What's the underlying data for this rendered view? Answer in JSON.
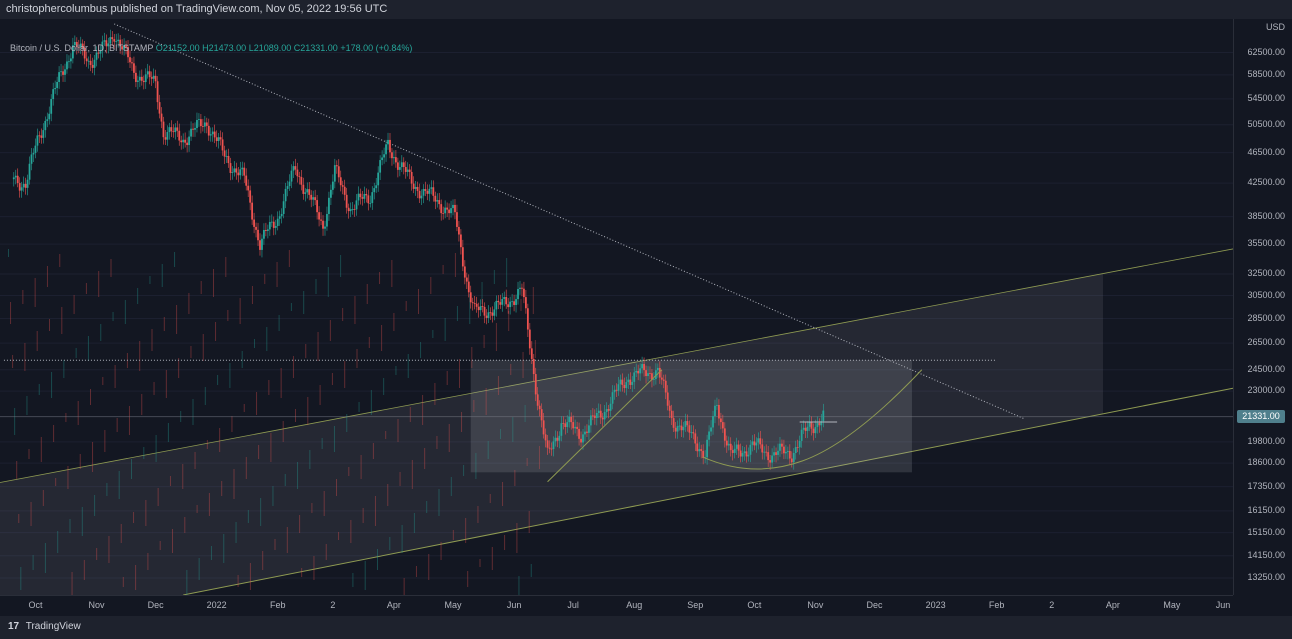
{
  "header": {
    "publisher_text": "christophercolumbus published on TradingView.com, Nov 05, 2022 19:56 UTC"
  },
  "legend": {
    "symbol": "Bitcoin / U.S. Dollar, 1D, BITSTAMP",
    "open": "O21152.00",
    "high": "H21473.00",
    "low": "L21089.00",
    "close": "C21331.00",
    "change": "+178.00 (+0.84%)"
  },
  "footer": {
    "logo_mark": "17",
    "logo_text": "TradingView"
  },
  "colors": {
    "background": "#131722",
    "up": "#26a69a",
    "down": "#ef5350",
    "trend_green": "#8f9b52",
    "white_dotted": "#b2b5be",
    "price_tag": "#4f7f8c"
  },
  "chart_data": {
    "type": "candlestick",
    "currency": "USD",
    "y_scale": "log",
    "ylim": [
      12600,
      69000
    ],
    "y_ticks": [
      "62500.00",
      "58500.00",
      "54500.00",
      "50500.00",
      "46500.00",
      "42500.00",
      "38500.00",
      "35500.00",
      "32500.00",
      "30500.00",
      "28500.00",
      "26500.00",
      "24500.00",
      "23000.00",
      "19800.00",
      "18600.00",
      "17350.00",
      "16150.00",
      "15150.00",
      "14150.00",
      "13250.00"
    ],
    "x_ticks": [
      "Oct",
      "Nov",
      "Dec",
      "2022",
      "Feb",
      "2",
      "Apr",
      "May",
      "Jun",
      "Jul",
      "Aug",
      "Sep",
      "Oct",
      "Nov",
      "Dec",
      "2023",
      "Feb",
      "2",
      "Apr",
      "May",
      "Jun"
    ],
    "current_price_label": "21331.00",
    "current_price": 21331,
    "close_series": [
      {
        "x": "2021-09-20",
        "y": 43000
      },
      {
        "x": "2021-09-26",
        "y": 42500
      },
      {
        "x": "2021-10-02",
        "y": 48000
      },
      {
        "x": "2021-10-10",
        "y": 55000
      },
      {
        "x": "2021-10-20",
        "y": 64000
      },
      {
        "x": "2021-10-28",
        "y": 61000
      },
      {
        "x": "2021-11-06",
        "y": 63500
      },
      {
        "x": "2021-11-10",
        "y": 66500
      },
      {
        "x": "2021-11-20",
        "y": 59000
      },
      {
        "x": "2021-12-01",
        "y": 57000
      },
      {
        "x": "2021-12-05",
        "y": 49500
      },
      {
        "x": "2021-12-15",
        "y": 48500
      },
      {
        "x": "2021-12-27",
        "y": 51000
      },
      {
        "x": "2022-01-05",
        "y": 46000
      },
      {
        "x": "2022-01-15",
        "y": 43000
      },
      {
        "x": "2022-01-23",
        "y": 35500
      },
      {
        "x": "2022-02-01",
        "y": 38500
      },
      {
        "x": "2022-02-10",
        "y": 44500
      },
      {
        "x": "2022-02-24",
        "y": 37500
      },
      {
        "x": "2022-03-02",
        "y": 44000
      },
      {
        "x": "2022-03-10",
        "y": 39500
      },
      {
        "x": "2022-03-20",
        "y": 41000
      },
      {
        "x": "2022-03-29",
        "y": 47500
      },
      {
        "x": "2022-04-10",
        "y": 42500
      },
      {
        "x": "2022-04-25",
        "y": 40000
      },
      {
        "x": "2022-05-02",
        "y": 38500
      },
      {
        "x": "2022-05-09",
        "y": 31000
      },
      {
        "x": "2022-05-12",
        "y": 29000
      },
      {
        "x": "2022-05-25",
        "y": 29500
      },
      {
        "x": "2022-06-05",
        "y": 31000
      },
      {
        "x": "2022-06-13",
        "y": 22500
      },
      {
        "x": "2022-06-18",
        "y": 18900
      },
      {
        "x": "2022-06-25",
        "y": 21000
      },
      {
        "x": "2022-07-05",
        "y": 20300
      },
      {
        "x": "2022-07-15",
        "y": 21500
      },
      {
        "x": "2022-07-29",
        "y": 24000
      },
      {
        "x": "2022-08-13",
        "y": 24500
      },
      {
        "x": "2022-08-20",
        "y": 21200
      },
      {
        "x": "2022-09-01",
        "y": 20000
      },
      {
        "x": "2022-09-06",
        "y": 19000
      },
      {
        "x": "2022-09-12",
        "y": 22200
      },
      {
        "x": "2022-09-19",
        "y": 19000
      },
      {
        "x": "2022-09-30",
        "y": 19600
      },
      {
        "x": "2022-10-10",
        "y": 19100
      },
      {
        "x": "2022-10-20",
        "y": 19200
      },
      {
        "x": "2022-10-29",
        "y": 20700
      },
      {
        "x": "2022-11-05",
        "y": 21331
      }
    ],
    "volume_profile_note": "faint red/green bars across plot",
    "drawings": [
      {
        "kind": "dotted_descending_trendline",
        "from": {
          "x": "2021-11-10",
          "y": 68000
        },
        "to": {
          "x": "2023-02-15",
          "y": 21200
        }
      },
      {
        "kind": "dotted_horizontal",
        "y": 25200,
        "from": "2021-09-15",
        "to": "2023-02-01"
      },
      {
        "kind": "ascending_channel_upper",
        "from": {
          "x": "2021-09-15",
          "y": 17600
        },
        "to": {
          "x": "2023-06-01",
          "y": 35000
        }
      },
      {
        "kind": "ascending_channel_lower",
        "from": {
          "x": "2021-12-15",
          "y": 12600
        },
        "to": {
          "x": "2023-06-01",
          "y": 23200
        }
      },
      {
        "kind": "rectangle_range",
        "x0": "2022-05-10",
        "x1": "2022-12-20",
        "y_low": 18100,
        "y_high": 25200
      },
      {
        "kind": "parabolic_curve",
        "from": {
          "x": "2022-09-25",
          "y": 18500
        },
        "to": {
          "x": "2022-12-25",
          "y": 24500
        }
      },
      {
        "kind": "rising_support",
        "from": {
          "x": "2022-06-18",
          "y": 17600
        },
        "to": {
          "x": "2022-08-15",
          "y": 24500
        }
      },
      {
        "kind": "short_horizontal",
        "y": 21000,
        "from": "2022-10-24",
        "to": "2022-11-12"
      }
    ]
  }
}
